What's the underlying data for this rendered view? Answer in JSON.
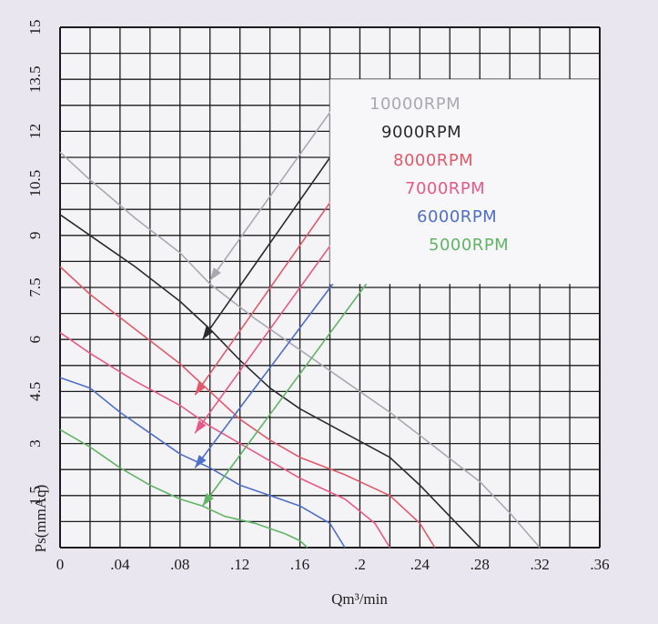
{
  "chart_data": {
    "type": "line",
    "title": "",
    "xlabel": "Qm³/min",
    "ylabel": "Ps(mmAq)",
    "xlim": [
      0,
      0.36
    ],
    "ylim": [
      0,
      15
    ],
    "grid": true,
    "legend_placement": "top-right",
    "x_ticks": [
      "0",
      ".04",
      ".08",
      ".12",
      ".16",
      ".2",
      ".24",
      ".28",
      ".32",
      ".36"
    ],
    "y_ticks": [
      "0",
      "1.5",
      "3",
      "4.5",
      "6",
      "7.5",
      "9",
      "10.5",
      "12",
      "13.5",
      "15"
    ],
    "series": [
      {
        "name": "10000RPM",
        "color": "#a9a9b3",
        "arrow_at": [
          0.1,
          7.7
        ],
        "points": [
          [
            0.0,
            11.4
          ],
          [
            0.02,
            10.6
          ],
          [
            0.05,
            9.5
          ],
          [
            0.08,
            8.5
          ],
          [
            0.1,
            7.6
          ],
          [
            0.13,
            6.6
          ],
          [
            0.16,
            5.7
          ],
          [
            0.19,
            4.8
          ],
          [
            0.22,
            3.9
          ],
          [
            0.25,
            2.9
          ],
          [
            0.28,
            1.9
          ],
          [
            0.3,
            1.0
          ],
          [
            0.32,
            0.0
          ]
        ]
      },
      {
        "name": "9000RPM",
        "color": "#2b2b2b",
        "arrow_at": [
          0.095,
          6.0
        ],
        "points": [
          [
            0.0,
            9.6
          ],
          [
            0.02,
            9.0
          ],
          [
            0.05,
            8.1
          ],
          [
            0.08,
            7.1
          ],
          [
            0.1,
            6.3
          ],
          [
            0.12,
            5.4
          ],
          [
            0.14,
            4.6
          ],
          [
            0.16,
            4.0
          ],
          [
            0.19,
            3.3
          ],
          [
            0.22,
            2.6
          ],
          [
            0.24,
            1.8
          ],
          [
            0.26,
            0.9
          ],
          [
            0.28,
            0.0
          ]
        ]
      },
      {
        "name": "8000RPM",
        "color": "#e05a6a",
        "arrow_at": [
          0.09,
          4.4
        ],
        "points": [
          [
            0.0,
            8.1
          ],
          [
            0.02,
            7.3
          ],
          [
            0.05,
            6.3
          ],
          [
            0.08,
            5.3
          ],
          [
            0.1,
            4.5
          ],
          [
            0.12,
            3.7
          ],
          [
            0.14,
            3.1
          ],
          [
            0.16,
            2.6
          ],
          [
            0.19,
            2.1
          ],
          [
            0.22,
            1.5
          ],
          [
            0.24,
            0.7
          ],
          [
            0.25,
            0.0
          ]
        ]
      },
      {
        "name": "7000RPM",
        "color": "#e85a86",
        "arrow_at": [
          0.09,
          3.3
        ],
        "points": [
          [
            0.0,
            6.2
          ],
          [
            0.02,
            5.6
          ],
          [
            0.05,
            4.8
          ],
          [
            0.08,
            4.1
          ],
          [
            0.1,
            3.5
          ],
          [
            0.12,
            3.0
          ],
          [
            0.14,
            2.5
          ],
          [
            0.16,
            2.0
          ],
          [
            0.19,
            1.4
          ],
          [
            0.21,
            0.7
          ],
          [
            0.22,
            0.0
          ]
        ]
      },
      {
        "name": "6000RPM",
        "color": "#4f6fc8",
        "arrow_at": [
          0.09,
          2.3
        ],
        "points": [
          [
            0.0,
            4.9
          ],
          [
            0.02,
            4.6
          ],
          [
            0.04,
            3.9
          ],
          [
            0.06,
            3.3
          ],
          [
            0.08,
            2.7
          ],
          [
            0.1,
            2.3
          ],
          [
            0.12,
            1.8
          ],
          [
            0.14,
            1.5
          ],
          [
            0.16,
            1.2
          ],
          [
            0.18,
            0.7
          ],
          [
            0.19,
            0.0
          ]
        ]
      },
      {
        "name": "5000RPM",
        "color": "#62b466",
        "arrow_at": [
          0.095,
          1.2
        ],
        "points": [
          [
            0.0,
            3.4
          ],
          [
            0.02,
            2.9
          ],
          [
            0.04,
            2.3
          ],
          [
            0.06,
            1.8
          ],
          [
            0.08,
            1.4
          ],
          [
            0.095,
            1.2
          ],
          [
            0.11,
            0.9
          ],
          [
            0.13,
            0.7
          ],
          [
            0.15,
            0.4
          ],
          [
            0.16,
            0.2
          ],
          [
            0.165,
            0.0
          ]
        ]
      }
    ]
  }
}
